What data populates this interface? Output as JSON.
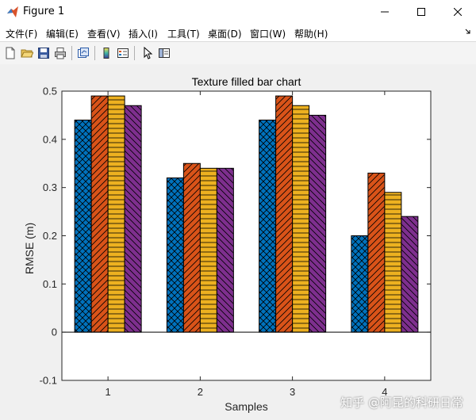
{
  "window": {
    "title": "Figure 1",
    "minimize_icon": "minimize-icon",
    "maximize_icon": "maximize-icon",
    "close_icon": "close-icon"
  },
  "menu": [
    "文件(F)",
    "编辑(E)",
    "查看(V)",
    "插入(I)",
    "工具(T)",
    "桌面(D)",
    "窗口(W)",
    "帮助(H)"
  ],
  "toolbar": {
    "icons": [
      "new-figure-icon",
      "open-file-icon",
      "save-icon",
      "print-icon",
      "link-plot-icon",
      "insert-colorbar-icon",
      "insert-legend-icon",
      "pointer-icon",
      "property-editor-icon"
    ]
  },
  "watermark": "知乎 @阿昆的科研日常",
  "colors": {
    "series": [
      "#0072BD",
      "#D95319",
      "#EDB120",
      "#7E2F8E"
    ],
    "axes_bg": "#ffffff",
    "figure_bg": "#f0f0f0"
  },
  "chart_data": {
    "type": "bar",
    "title": "Texture filled bar chart",
    "xlabel": "Samples",
    "ylabel": "RMSE (m)",
    "categories": [
      "1",
      "2",
      "3",
      "4"
    ],
    "ylim": [
      -0.1,
      0.5
    ],
    "yticks": [
      -0.1,
      0,
      0.1,
      0.2,
      0.3,
      0.4,
      0.5
    ],
    "ytick_labels": [
      "-0.1",
      "0",
      "0.1",
      "0.2",
      "0.3",
      "0.4",
      "0.5"
    ],
    "grid": false,
    "series": [
      {
        "values": [
          0.44,
          0.32,
          0.44,
          0.2
        ],
        "color": "#0072BD",
        "pattern": "cross-hatch"
      },
      {
        "values": [
          0.49,
          0.35,
          0.49,
          0.33
        ],
        "color": "#D95319",
        "pattern": "diagonal"
      },
      {
        "values": [
          0.49,
          0.34,
          0.47,
          0.29
        ],
        "color": "#EDB120",
        "pattern": "horizontal"
      },
      {
        "values": [
          0.47,
          0.34,
          0.45,
          0.24
        ],
        "color": "#7E2F8E",
        "pattern": "back-diagonal"
      }
    ]
  }
}
